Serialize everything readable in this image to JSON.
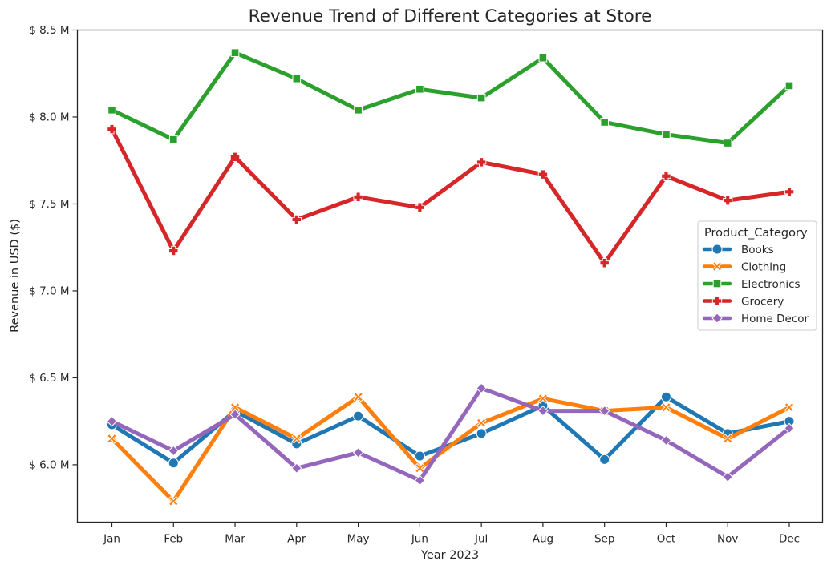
{
  "chart_data": {
    "type": "line",
    "title": "Revenue Trend of Different Categories at Store",
    "xlabel": "Year 2023",
    "ylabel": "Revenue in USD ($)",
    "categories": [
      "Jan",
      "Feb",
      "Mar",
      "Apr",
      "May",
      "Jun",
      "Jul",
      "Aug",
      "Sep",
      "Oct",
      "Nov",
      "Dec"
    ],
    "yticks": [
      6.0,
      6.5,
      7.0,
      7.5,
      8.0,
      8.5
    ],
    "ytick_labels": [
      "$ 6.0 M",
      "$ 6.5 M",
      "$ 7.0 M",
      "$ 7.5 M",
      "$ 8.0 M",
      "$ 8.5 M"
    ],
    "ylim": [
      5.67,
      8.5
    ],
    "grid": false,
    "legend": {
      "title": "Product_Category",
      "placement": "center-right"
    },
    "series": [
      {
        "name": "Books",
        "color": "#1f77b4",
        "marker": "circle",
        "values": [
          6.23,
          6.01,
          6.31,
          6.12,
          6.28,
          6.05,
          6.18,
          6.34,
          6.03,
          6.39,
          6.18,
          6.25
        ]
      },
      {
        "name": "Clothing",
        "color": "#ff7f0e",
        "marker": "x",
        "values": [
          6.15,
          5.79,
          6.33,
          6.15,
          6.39,
          5.98,
          6.24,
          6.38,
          6.31,
          6.33,
          6.15,
          6.33
        ]
      },
      {
        "name": "Electronics",
        "color": "#2ca02c",
        "marker": "square",
        "values": [
          8.04,
          7.87,
          8.37,
          8.22,
          8.04,
          8.16,
          8.11,
          8.34,
          7.97,
          7.9,
          7.85,
          8.18
        ]
      },
      {
        "name": "Grocery",
        "color": "#d62728",
        "marker": "plus",
        "values": [
          7.93,
          7.23,
          7.77,
          7.41,
          7.54,
          7.48,
          7.74,
          7.67,
          7.16,
          7.66,
          7.52,
          7.57
        ]
      },
      {
        "name": "Home Decor",
        "color": "#9467bd",
        "marker": "diamond",
        "values": [
          6.25,
          6.08,
          6.29,
          5.98,
          6.07,
          5.91,
          6.44,
          6.31,
          6.31,
          6.14,
          5.93,
          6.21
        ]
      }
    ]
  }
}
